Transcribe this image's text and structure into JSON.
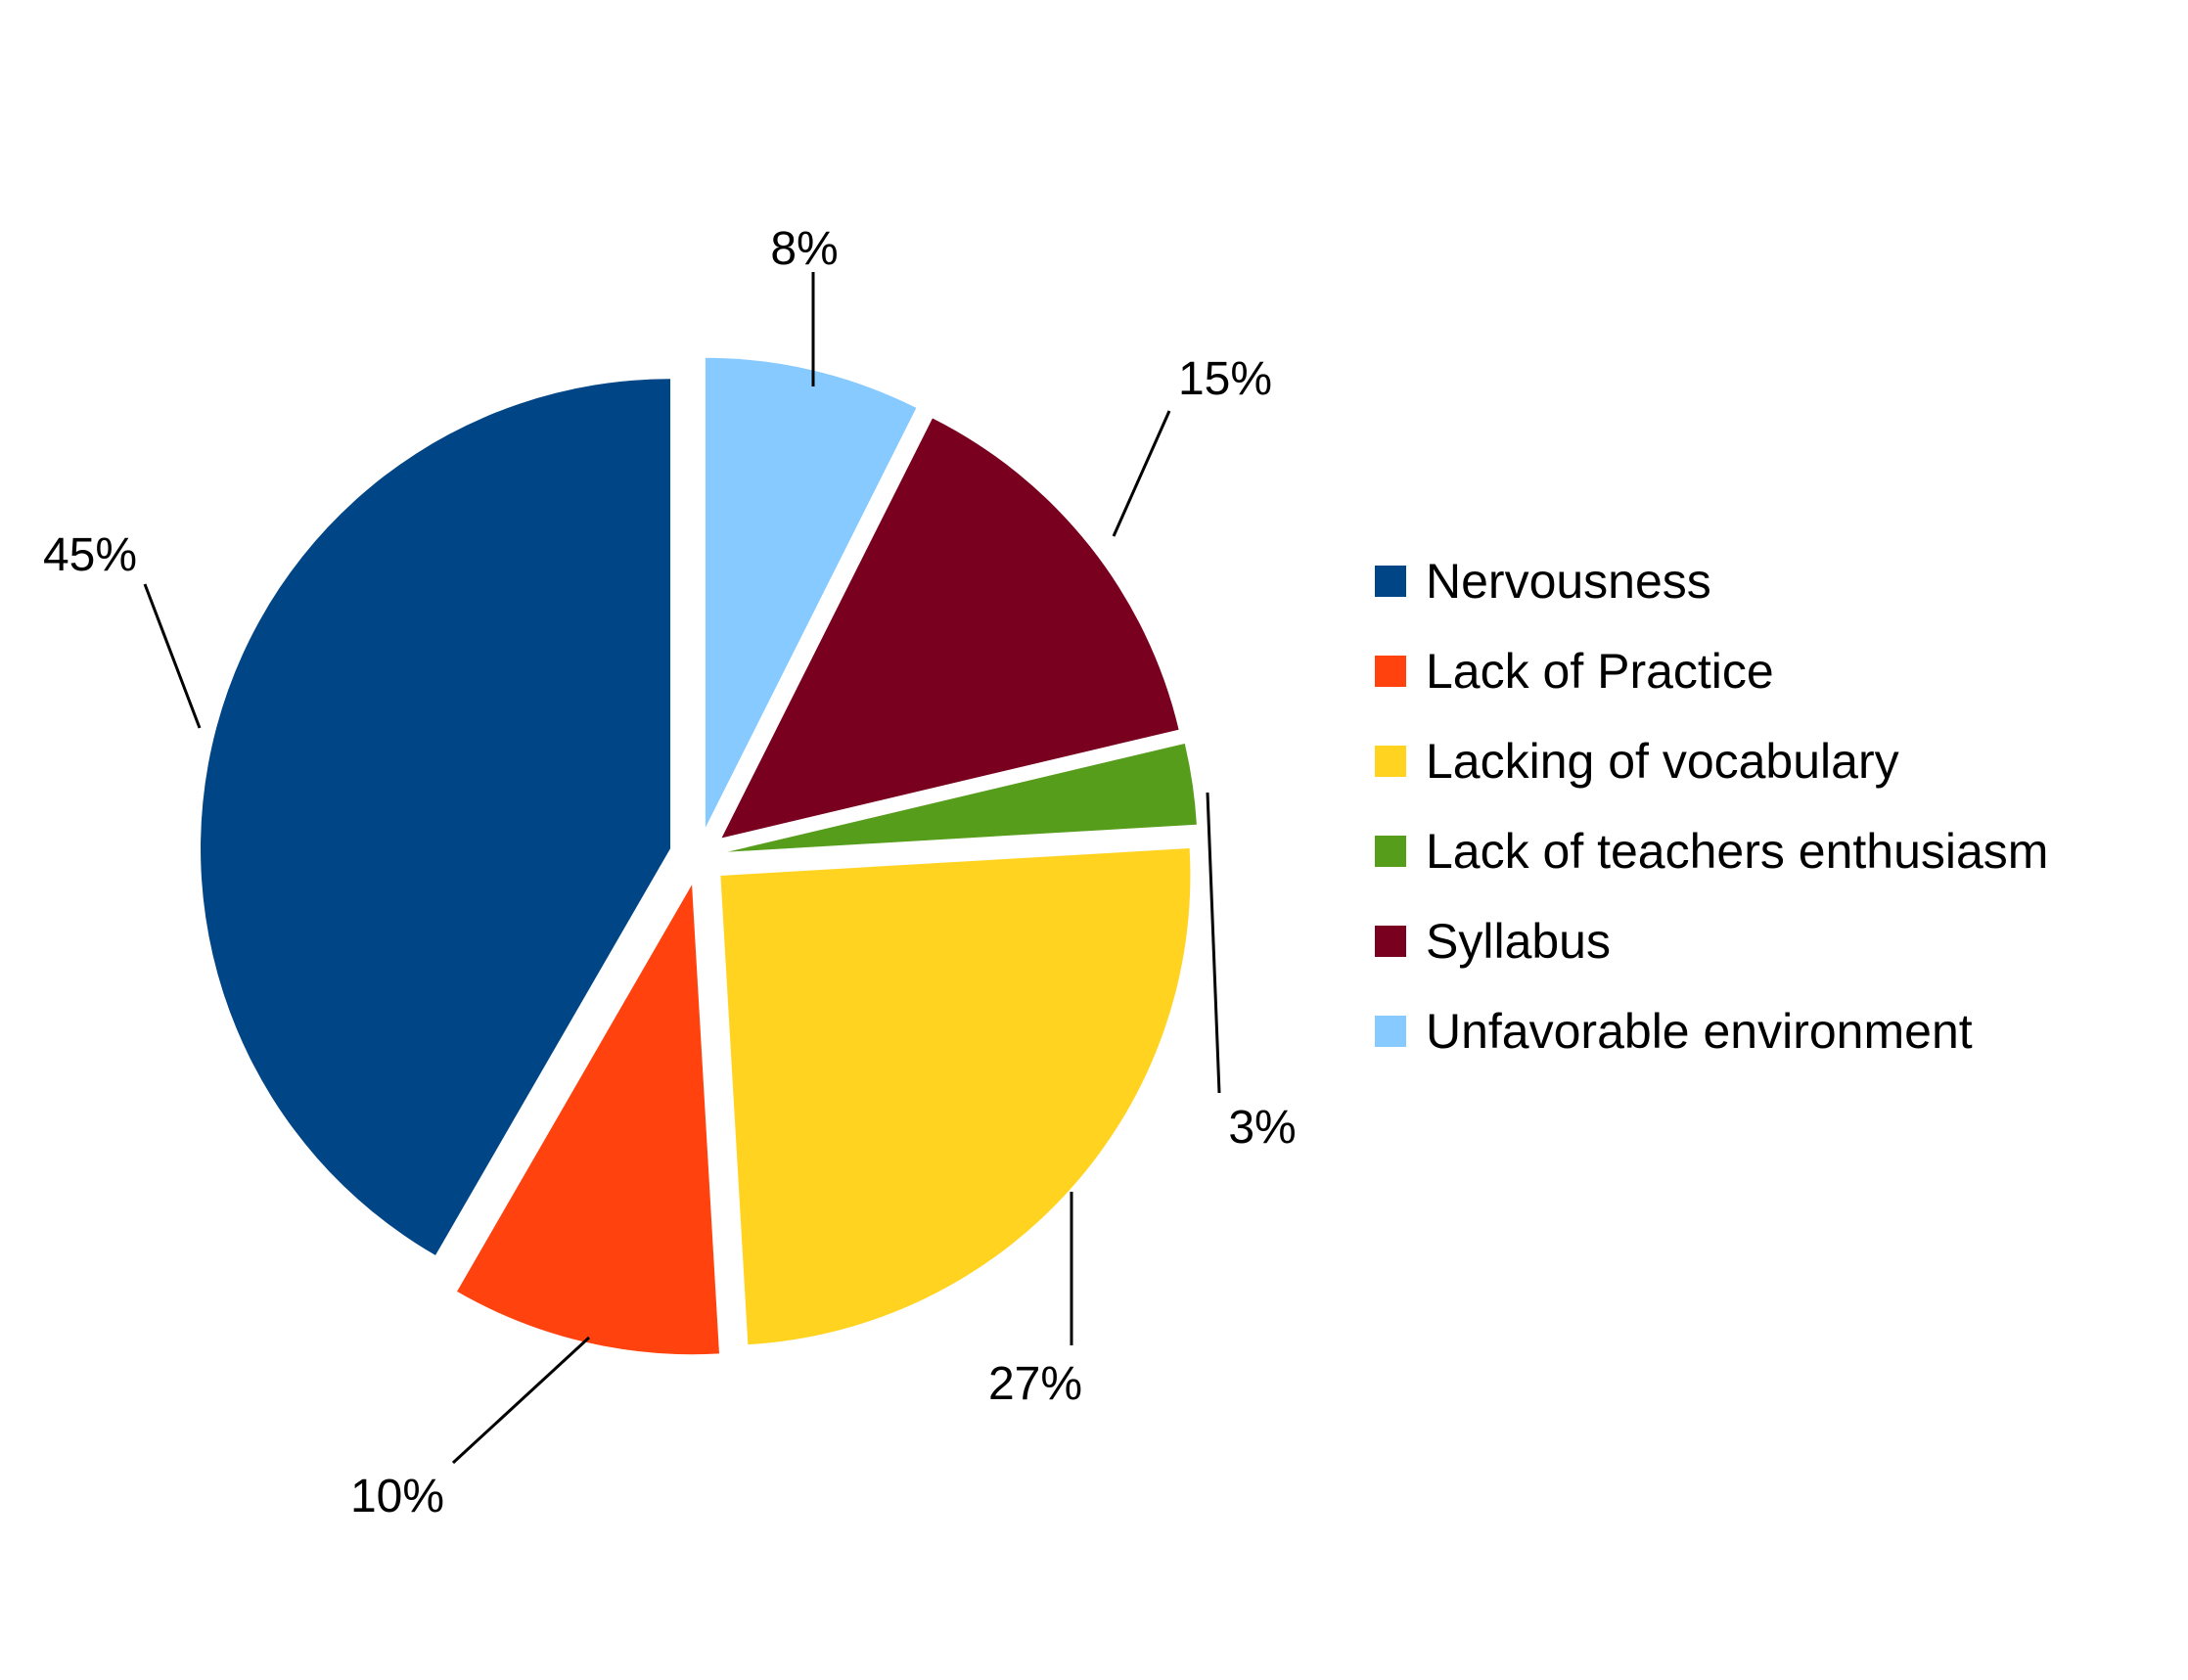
{
  "chart_data": {
    "type": "pie",
    "title": "",
    "legend_position": "right",
    "slices": [
      {
        "label": "Unfavorable environment",
        "value": 8,
        "display": "8%",
        "color": "#87CAFF"
      },
      {
        "label": "Syllabus",
        "value": 15,
        "display": "15%",
        "color": "#7A0020"
      },
      {
        "label": "Lack of teachers enthusiasm",
        "value": 3,
        "display": "3%",
        "color": "#579D1C"
      },
      {
        "label": "Lacking of vocabulary",
        "value": 27,
        "display": "27%",
        "color": "#FFD320"
      },
      {
        "label": "Lack of Practice",
        "value": 10,
        "display": "10%",
        "color": "#FF420E"
      },
      {
        "label": "Nervousness",
        "value": 45,
        "display": "45%",
        "color": "#004586"
      }
    ],
    "legend": [
      {
        "label": "Nervousness",
        "color": "#004586"
      },
      {
        "label": "Lack of Practice",
        "color": "#FF420E"
      },
      {
        "label": "Lacking of vocabulary",
        "color": "#FFD320"
      },
      {
        "label": "Lack of teachers enthusiasm",
        "color": "#579D1C"
      },
      {
        "label": "Syllabus",
        "color": "#7A0020"
      },
      {
        "label": "Unfavorable environment",
        "color": "#87CAFF"
      }
    ]
  }
}
